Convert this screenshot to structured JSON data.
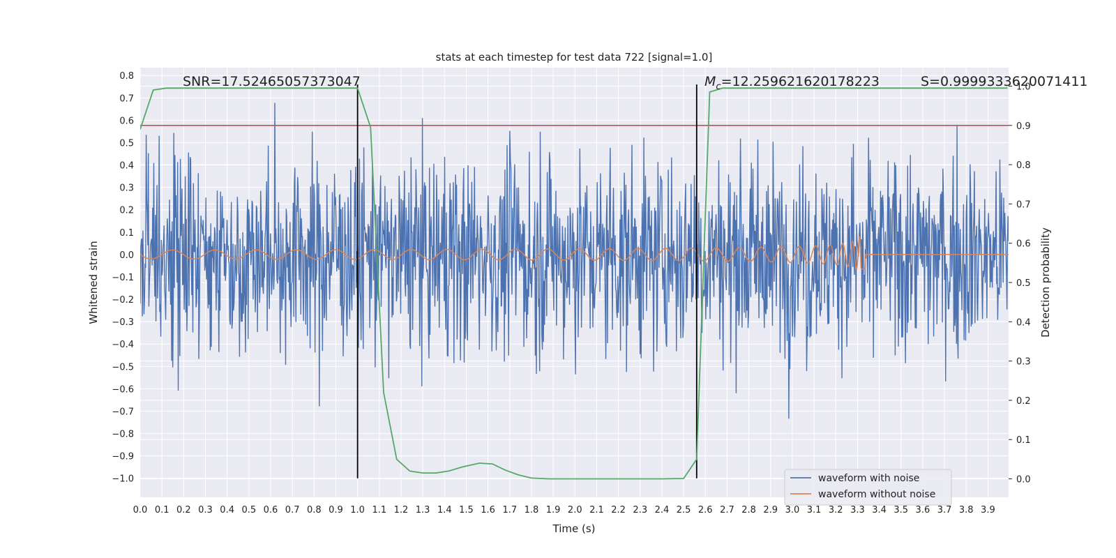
{
  "chart_data": {
    "type": "line",
    "title": "stats at each timestep for test data 722 [signal=1.0]",
    "xlabel": "Time (s)",
    "ylabel": "Whitened strain",
    "y2label": "Detection probability",
    "xlim": [
      0.0,
      3.995
    ],
    "ylim": [
      -1.085,
      0.835
    ],
    "y2lim": [
      -0.047,
      1.047
    ],
    "x_ticks": [
      0.0,
      0.1,
      0.2,
      0.3,
      0.4,
      0.5,
      0.6,
      0.7,
      0.8,
      0.9,
      1.0,
      1.1,
      1.2,
      1.3,
      1.4,
      1.5,
      1.6,
      1.7,
      1.8,
      1.9,
      2.0,
      2.1,
      2.2,
      2.3,
      2.4,
      2.5,
      2.6,
      2.7,
      2.8,
      2.9,
      3.0,
      3.1,
      3.2,
      3.3,
      3.4,
      3.5,
      3.6,
      3.7,
      3.8,
      3.9
    ],
    "x_tick_labels": [
      "0.0",
      "0.1",
      "0.2",
      "0.3",
      "0.4",
      "0.5",
      "0.6",
      "0.7",
      "0.8",
      "0.9",
      "1.0",
      "1.1",
      "1.2",
      "1.3",
      "1.4",
      "1.5",
      "1.6",
      "1.7",
      "1.8",
      "1.9",
      "2.0",
      "2.1",
      "2.2",
      "2.3",
      "2.4",
      "2.5",
      "2.6",
      "2.7",
      "2.8",
      "2.9",
      "3.0",
      "3.1",
      "3.2",
      "3.3",
      "3.4",
      "3.5",
      "3.6",
      "3.7",
      "3.8",
      "3.9"
    ],
    "y_ticks": [
      0.8,
      0.7,
      0.6,
      0.5,
      0.4,
      0.3,
      0.2,
      0.1,
      0.0,
      -0.1,
      -0.2,
      -0.3,
      -0.4,
      -0.5,
      -0.6,
      -0.7,
      -0.8,
      -0.9,
      -1.0
    ],
    "y_tick_labels": [
      "0.8",
      "0.7",
      "0.6",
      "0.5",
      "0.4",
      "0.3",
      "0.2",
      "0.1",
      "0.0",
      "−0.1",
      "−0.2",
      "−0.3",
      "−0.4",
      "−0.5",
      "−0.6",
      "−0.7",
      "−0.8",
      "−0.9",
      "−1.0"
    ],
    "y2_ticks": [
      1.0,
      0.9,
      0.8,
      0.7,
      0.6,
      0.5,
      0.4,
      0.3,
      0.2,
      0.1,
      0.0
    ],
    "y2_tick_labels": [
      "1.0",
      "0.9",
      "0.8",
      "0.7",
      "0.6",
      "0.5",
      "0.4",
      "0.3",
      "0.2",
      "0.1",
      "0.0"
    ],
    "series": [
      {
        "name": "waveform with noise",
        "color": "#4c72b0",
        "kind": "noise",
        "envelope": 0.6
      },
      {
        "name": "waveform without noise",
        "color": "#dd8452",
        "kind": "chirp",
        "merger_time": 3.32
      },
      {
        "name": "detection probability",
        "color": "#55a868",
        "axis": "right",
        "x": [
          0.0,
          0.06,
          0.12,
          0.18,
          0.24,
          1.0,
          1.06,
          1.12,
          1.18,
          1.24,
          1.3,
          1.36,
          1.42,
          1.48,
          1.56,
          1.62,
          1.68,
          1.74,
          1.8,
          1.88,
          2.0,
          2.2,
          2.4,
          2.5,
          2.56,
          2.62,
          2.68,
          3.99
        ],
        "values": [
          0.89,
          0.99,
          0.995,
          0.995,
          0.995,
          0.995,
          0.895,
          0.22,
          0.05,
          0.02,
          0.015,
          0.015,
          0.02,
          0.03,
          0.04,
          0.038,
          0.022,
          0.01,
          0.002,
          0.0,
          0.0,
          0.0,
          0.0,
          0.001,
          0.05,
          0.985,
          0.995,
          0.995
        ]
      }
    ],
    "threshold": {
      "value": 0.9,
      "axis": "right",
      "color": "#c44e52"
    },
    "vlines": [
      {
        "x": 1.0,
        "y_range": [
          -1.0,
          0.76
        ],
        "color": "#000000"
      },
      {
        "x": 2.56,
        "y_range": [
          -1.0,
          0.76
        ],
        "color": "#000000"
      }
    ],
    "annotations": {
      "snr": "SNR=17.52465057373047",
      "mc_symbol": "M",
      "mc_sub": "c",
      "mc_value": "=12.259621620178223",
      "s": "S=0.9999333620071411"
    },
    "legend": {
      "location": "lower-right",
      "entries": [
        "waveform with noise",
        "waveform without noise"
      ]
    },
    "grid": true
  },
  "colors": {
    "axes_bg": "#eaeaf2",
    "grid": "#ffffff",
    "text": "#222222"
  }
}
